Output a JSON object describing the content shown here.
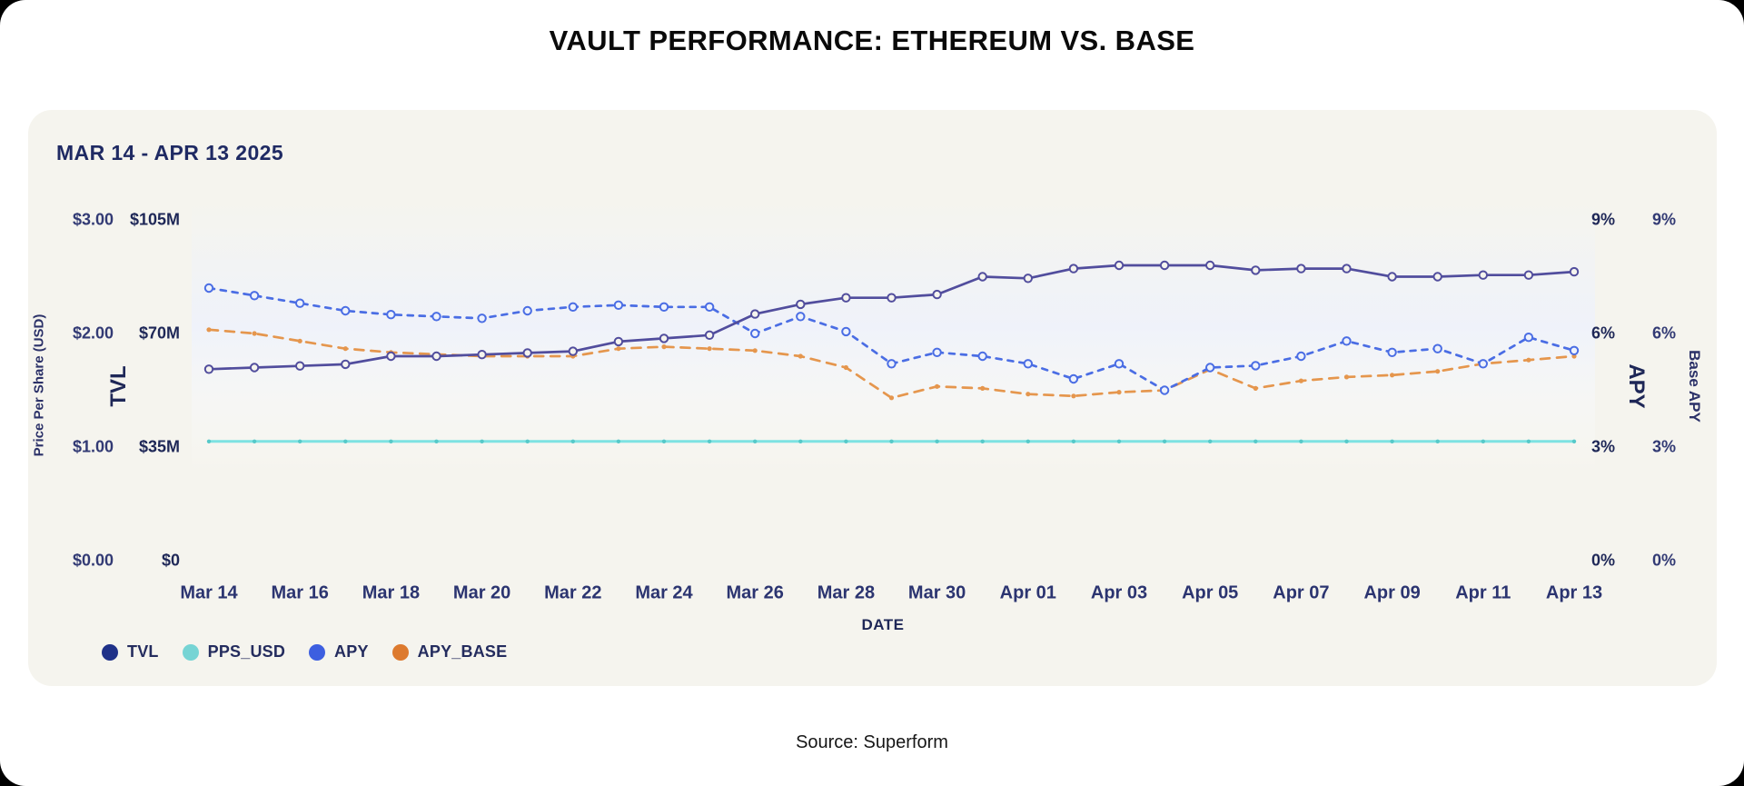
{
  "page": {
    "title": "VAULT PERFORMANCE: ETHEREUM VS. BASE"
  },
  "card": {
    "subtitle": "MAR 14 - APR 13 2025"
  },
  "footer": {
    "source": "Source: Superform"
  },
  "colors": {
    "card_bg": "#f5f4ee",
    "tvl_line": "#514d9d",
    "tvl_legend": "#1f3188",
    "pps_line": "#7de2e2",
    "pps_legend": "#76d4d4",
    "apy_line": "#4a6de4",
    "apy_legend": "#3d5fe0",
    "apy_base_line": "#e5964d",
    "apy_base_legend": "#dd7a2e",
    "navy_text": "#1e2757"
  },
  "chart_data": {
    "type": "line",
    "title": "MAR 14 - APR 13 2025",
    "xlabel": "DATE",
    "grid": false,
    "legend_position": "bottom-left",
    "x": [
      "Mar 14",
      "Mar 15",
      "Mar 16",
      "Mar 17",
      "Mar 18",
      "Mar 19",
      "Mar 20",
      "Mar 21",
      "Mar 22",
      "Mar 23",
      "Mar 24",
      "Mar 25",
      "Mar 26",
      "Mar 27",
      "Mar 28",
      "Mar 29",
      "Mar 30",
      "Mar 31",
      "Apr 01",
      "Apr 02",
      "Apr 03",
      "Apr 04",
      "Apr 05",
      "Apr 06",
      "Apr 07",
      "Apr 08",
      "Apr 09",
      "Apr 10",
      "Apr 11",
      "Apr 12",
      "Apr 13"
    ],
    "x_tick_labels": [
      "Mar 14",
      "Mar 16",
      "Mar 18",
      "Mar 20",
      "Mar 22",
      "Mar 24",
      "Mar 26",
      "Mar 28",
      "Mar 30",
      "Apr 01",
      "Apr 03",
      "Apr 05",
      "Apr 07",
      "Apr 09",
      "Apr 11",
      "Apr 13"
    ],
    "axes": {
      "pps": {
        "label": "Price Per Share (USD)",
        "ticks": [
          "$3.00",
          "$2.00",
          "$1.00",
          "$0.00"
        ],
        "max": 3
      },
      "tvl": {
        "label": "TVL",
        "ticks": [
          "$105M",
          "$70M",
          "$35M",
          "$0"
        ],
        "max": 105
      },
      "apy": {
        "label": "APY",
        "ticks": [
          "9%",
          "6%",
          "3%",
          "0%"
        ],
        "max": 9
      },
      "base_apy": {
        "label": "Base APY",
        "ticks": [
          "9%",
          "6%",
          "3%",
          "0%"
        ],
        "max": 9
      }
    },
    "series": [
      {
        "name": "TVL",
        "axis": "tvl",
        "unit": "$M",
        "style": "solid",
        "color": "#514d9d",
        "legend_color": "#1f3188",
        "values": [
          59,
          59.5,
          60,
          60.5,
          63,
          63,
          63.5,
          64,
          64.5,
          67.5,
          68.5,
          69.5,
          76,
          79,
          81,
          81,
          82,
          87.5,
          87,
          90,
          91,
          91,
          91,
          89.5,
          90,
          90,
          87.5,
          87.5,
          88,
          88,
          89
        ]
      },
      {
        "name": "PPS_USD",
        "axis": "pps",
        "unit": "$",
        "style": "solid",
        "color": "#7de2e2",
        "legend_color": "#76d4d4",
        "values": [
          1.05,
          1.05,
          1.05,
          1.05,
          1.05,
          1.05,
          1.05,
          1.05,
          1.05,
          1.05,
          1.05,
          1.05,
          1.05,
          1.05,
          1.05,
          1.05,
          1.05,
          1.05,
          1.05,
          1.05,
          1.05,
          1.05,
          1.05,
          1.05,
          1.05,
          1.05,
          1.05,
          1.05,
          1.05,
          1.05,
          1.05
        ]
      },
      {
        "name": "APY",
        "axis": "apy",
        "unit": "%",
        "style": "dashed",
        "color": "#4a6de4",
        "legend_color": "#3d5fe0",
        "values": [
          7.2,
          7.0,
          6.8,
          6.6,
          6.5,
          6.45,
          6.4,
          6.6,
          6.7,
          6.75,
          6.7,
          6.7,
          6.0,
          6.45,
          6.05,
          5.2,
          5.5,
          5.4,
          5.2,
          4.8,
          5.2,
          4.5,
          5.1,
          5.15,
          5.4,
          5.8,
          5.5,
          5.6,
          5.2,
          5.9,
          5.55
        ]
      },
      {
        "name": "APY_BASE",
        "axis": "apy",
        "unit": "%",
        "style": "dashed",
        "color": "#e5964d",
        "legend_color": "#dd7a2e",
        "values": [
          6.1,
          6.0,
          5.8,
          5.6,
          5.5,
          5.45,
          5.4,
          5.4,
          5.4,
          5.6,
          5.65,
          5.6,
          5.55,
          5.4,
          5.1,
          4.3,
          4.6,
          4.55,
          4.4,
          4.35,
          4.45,
          4.5,
          5.05,
          4.55,
          4.75,
          4.85,
          4.9,
          5.0,
          5.2,
          5.3,
          5.4
        ]
      }
    ]
  }
}
